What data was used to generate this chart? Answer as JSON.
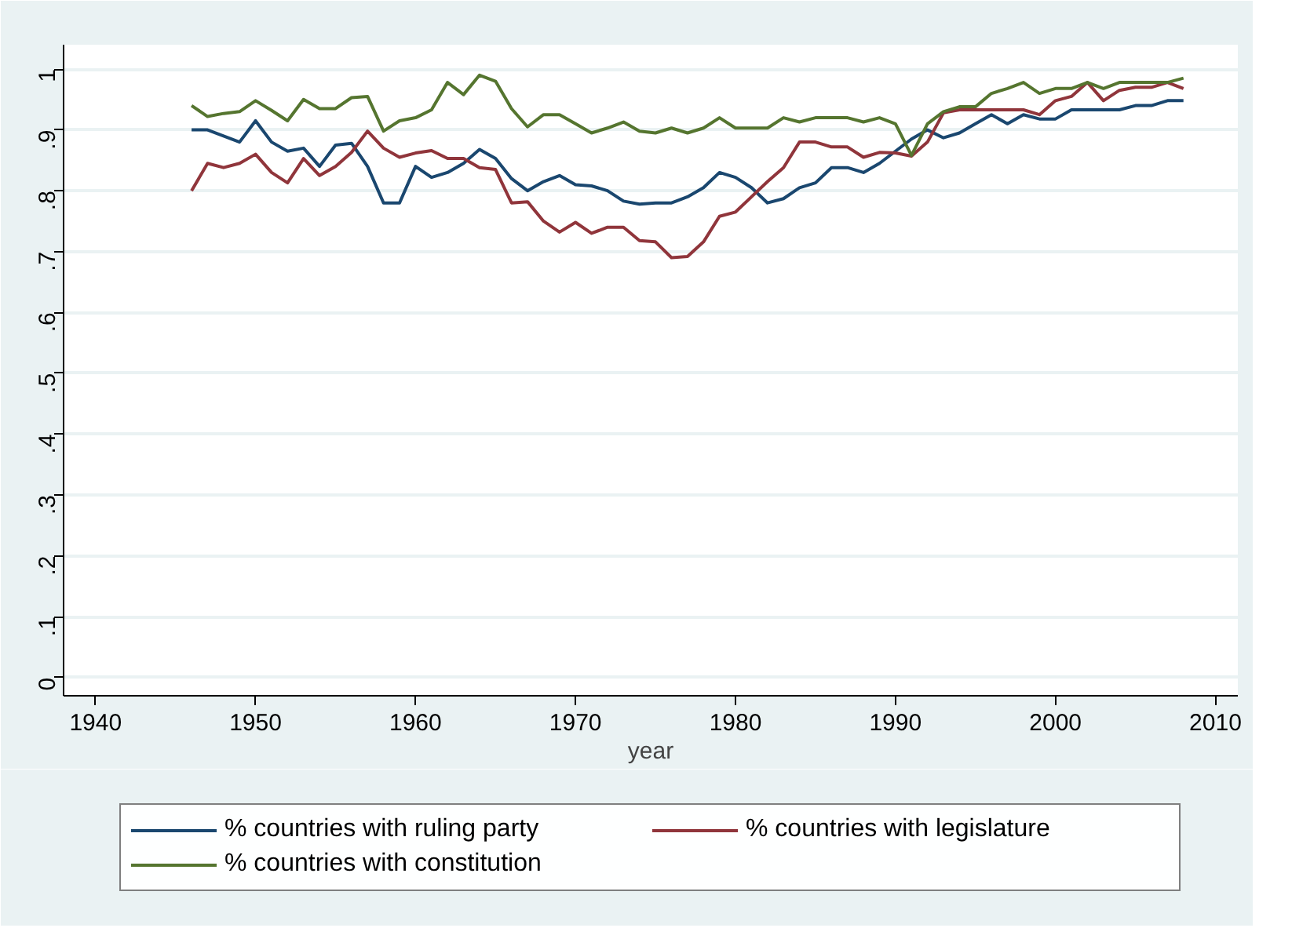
{
  "chart_data": {
    "type": "line",
    "xlabel": "year",
    "x": [
      1946,
      1947,
      1948,
      1949,
      1950,
      1951,
      1952,
      1953,
      1954,
      1955,
      1956,
      1957,
      1958,
      1959,
      1960,
      1961,
      1962,
      1963,
      1964,
      1965,
      1966,
      1967,
      1968,
      1969,
      1970,
      1971,
      1972,
      1973,
      1974,
      1975,
      1976,
      1977,
      1978,
      1979,
      1980,
      1981,
      1982,
      1983,
      1984,
      1985,
      1986,
      1987,
      1988,
      1989,
      1990,
      1991,
      1992,
      1993,
      1994,
      1995,
      1996,
      1997,
      1998,
      1999,
      2000,
      2001,
      2002,
      2003,
      2004,
      2005,
      2006,
      2007,
      2008
    ],
    "series": [
      {
        "name": "% countries with ruling party",
        "color": "#1a476f",
        "values": [
          0.9,
          0.9,
          0.89,
          0.88,
          0.915,
          0.88,
          0.865,
          0.87,
          0.84,
          0.875,
          0.878,
          0.84,
          0.78,
          0.78,
          0.84,
          0.822,
          0.83,
          0.845,
          0.868,
          0.853,
          0.82,
          0.8,
          0.815,
          0.825,
          0.81,
          0.808,
          0.8,
          0.783,
          0.778,
          0.78,
          0.78,
          0.79,
          0.805,
          0.83,
          0.822,
          0.805,
          0.78,
          0.787,
          0.805,
          0.813,
          0.838,
          0.838,
          0.83,
          0.845,
          0.865,
          0.885,
          0.9,
          0.887,
          0.895,
          0.91,
          0.925,
          0.91,
          0.925,
          0.918,
          0.918,
          0.933,
          0.933,
          0.933,
          0.933,
          0.94,
          0.94,
          0.948,
          0.948
        ]
      },
      {
        "name": "% countries with legislature",
        "color": "#90353b",
        "values": [
          0.8,
          0.845,
          0.838,
          0.845,
          0.86,
          0.83,
          0.813,
          0.853,
          0.825,
          0.84,
          0.863,
          0.898,
          0.87,
          0.855,
          0.862,
          0.866,
          0.853,
          0.853,
          0.838,
          0.835,
          0.78,
          0.782,
          0.75,
          0.732,
          0.748,
          0.73,
          0.74,
          0.74,
          0.718,
          0.716,
          0.69,
          0.692,
          0.716,
          0.758,
          0.765,
          0.79,
          0.815,
          0.838,
          0.88,
          0.88,
          0.872,
          0.872,
          0.855,
          0.863,
          0.862,
          0.857,
          0.88,
          0.928,
          0.933,
          0.933,
          0.933,
          0.933,
          0.933,
          0.925,
          0.948,
          0.955,
          0.978,
          0.948,
          0.965,
          0.97,
          0.97,
          0.978,
          0.968
        ]
      },
      {
        "name": "% countries with constitution",
        "color": "#55752f",
        "values": [
          0.94,
          0.922,
          0.927,
          0.93,
          0.948,
          0.932,
          0.915,
          0.95,
          0.935,
          0.935,
          0.953,
          0.955,
          0.898,
          0.915,
          0.92,
          0.933,
          0.978,
          0.958,
          0.99,
          0.98,
          0.935,
          0.905,
          0.925,
          0.925,
          0.91,
          0.895,
          0.903,
          0.913,
          0.898,
          0.895,
          0.903,
          0.895,
          0.903,
          0.92,
          0.903,
          0.903,
          0.903,
          0.92,
          0.913,
          0.92,
          0.92,
          0.92,
          0.913,
          0.92,
          0.91,
          0.858,
          0.91,
          0.93,
          0.938,
          0.938,
          0.96,
          0.968,
          0.978,
          0.96,
          0.968,
          0.968,
          0.978,
          0.968,
          0.978,
          0.978,
          0.978,
          0.978,
          0.985
        ]
      }
    ],
    "xlim": [
      1938,
      2011.4
    ],
    "ylim": [
      -0.03,
      1.04
    ],
    "xticks": [
      1940,
      1950,
      1960,
      1970,
      1980,
      1990,
      2000,
      2010
    ],
    "yticks": [
      0,
      {
        "value": 0.1,
        "label": ".1"
      },
      {
        "value": 0.2,
        "label": ".2"
      },
      {
        "value": 0.3,
        "label": ".3"
      },
      {
        "value": 0.4,
        "label": ".4"
      },
      {
        "value": 0.5,
        "label": ".5"
      },
      {
        "value": 0.6,
        "label": ".6"
      },
      {
        "value": 0.7,
        "label": ".7"
      },
      {
        "value": 0.8,
        "label": ".8"
      },
      {
        "value": 0.9,
        "label": ".9"
      },
      1
    ],
    "grid": "y",
    "legend": "bottom",
    "line_style": "solid",
    "marker": "none"
  }
}
